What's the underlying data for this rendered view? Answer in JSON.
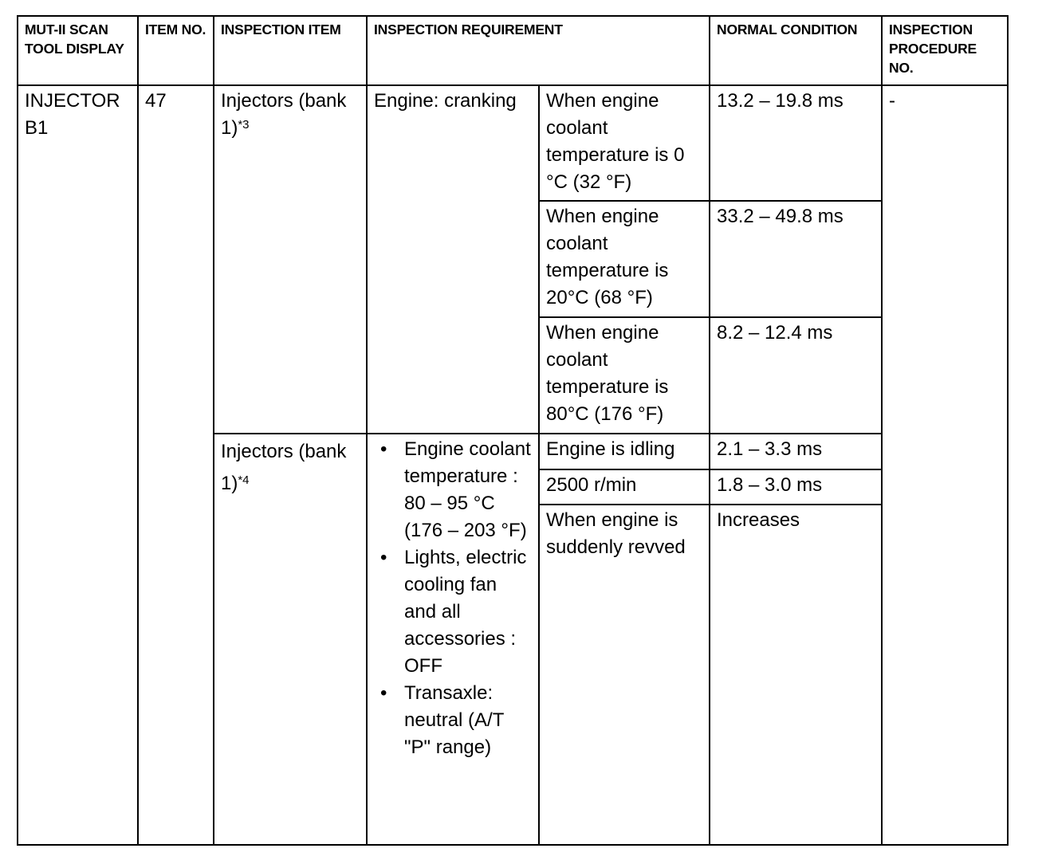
{
  "headers": {
    "display": "MUT-II SCAN TOOL DISPLAY",
    "item_no": "ITEM NO.",
    "inspection_item": "INSPECTION ITEM",
    "requirement": "INSPECTION REQUIREMENT",
    "normal": "NORMAL CONDITION",
    "procedure": "INSPECTION PROCEDURE NO."
  },
  "row": {
    "display": "INJECTOR B1",
    "item_no": "47",
    "procedure": "-"
  },
  "groups": [
    {
      "item": "Injectors (bank 1)",
      "note": "*3",
      "condition": "Engine: cranking",
      "subs": [
        {
          "req": "When engine coolant temperature is 0 °C (32 °F)",
          "normal": "13.2 – 19.8 ms"
        },
        {
          "req": "When engine coolant temperature is 20°C (68 °F)",
          "normal": "33.2 – 49.8 ms"
        },
        {
          "req": "When engine coolant temperature is 80°C (176 °F)",
          "normal": "8.2 – 12.4 ms"
        }
      ]
    },
    {
      "item": "Injectors (bank 1)",
      "note": "*4",
      "condition_bullets": [
        "Engine coolant temperature : 80 – 95 °C (176 – 203 °F)",
        "Lights, electric cooling fan and all accessories : OFF",
        "Transaxle: neutral (A/T \"P\" range)"
      ],
      "subs": [
        {
          "req": "Engine is idling",
          "normal": "2.1 – 3.3 ms"
        },
        {
          "req": "2500 r/min",
          "normal": "1.8 – 3.0 ms"
        },
        {
          "req": "When engine is suddenly revved",
          "normal": "Increases"
        }
      ]
    }
  ]
}
